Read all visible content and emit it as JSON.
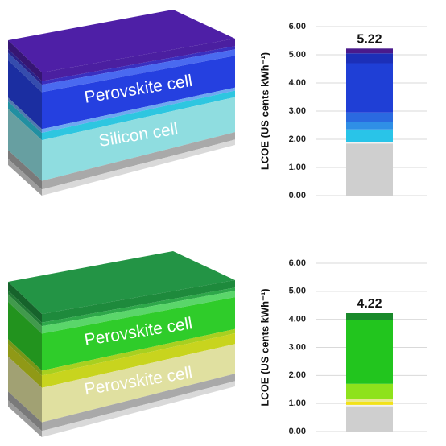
{
  "chart_data": [
    {
      "type": "stacked-bar",
      "y_label": "LCOE (US cents kWh⁻¹)",
      "total": 5.22,
      "ylim": [
        0,
        6
      ],
      "yticks": [
        {
          "value": 0,
          "label": "0.00"
        },
        {
          "value": 1,
          "label": "1.00"
        },
        {
          "value": 2,
          "label": "2.00"
        },
        {
          "value": 3,
          "label": "3.00"
        },
        {
          "value": 4,
          "label": "4.00"
        },
        {
          "value": 5,
          "label": "5.00"
        },
        {
          "value": 6,
          "label": "6.00"
        }
      ],
      "grid": true,
      "segments": [
        {
          "color": "#cfcfcf",
          "value": 1.85
        },
        {
          "color": "#f2f2f2",
          "value": 0.05
        },
        {
          "color": "#29c4e8",
          "value": 0.45
        },
        {
          "color": "#2f8fe6",
          "value": 0.25
        },
        {
          "color": "#2a6ae0",
          "value": 0.35
        },
        {
          "color": "#1f3fd6",
          "value": 1.75
        },
        {
          "color": "#1c2fb8",
          "value": 0.35
        },
        {
          "color": "#4a1a8c",
          "value": 0.17
        }
      ]
    },
    {
      "type": "stacked-bar",
      "y_label": "LCOE (US cents kWh⁻¹)",
      "total": 4.22,
      "ylim": [
        0,
        6
      ],
      "yticks": [
        {
          "value": 0,
          "label": "0.00"
        },
        {
          "value": 1,
          "label": "1.00"
        },
        {
          "value": 2,
          "label": "2.00"
        },
        {
          "value": 3,
          "label": "3.00"
        },
        {
          "value": 4,
          "label": "4.00"
        },
        {
          "value": 5,
          "label": "5.00"
        },
        {
          "value": 6,
          "label": "6.00"
        }
      ],
      "grid": true,
      "segments": [
        {
          "color": "#cfcfcf",
          "value": 0.9
        },
        {
          "color": "#f2f2f2",
          "value": 0.05
        },
        {
          "color": "#f2e21a",
          "value": 0.12
        },
        {
          "color": "#e8e890",
          "value": 0.08
        },
        {
          "color": "#8ee21c",
          "value": 0.55
        },
        {
          "color": "#22c51e",
          "value": 2.27
        },
        {
          "color": "#1a8a2a",
          "value": 0.25
        }
      ]
    }
  ],
  "illustrations": [
    {
      "labels": [
        "Perovskite cell",
        "Silicon cell"
      ]
    },
    {
      "labels": [
        "Perovskite cell",
        "Perovskite cell"
      ]
    }
  ]
}
